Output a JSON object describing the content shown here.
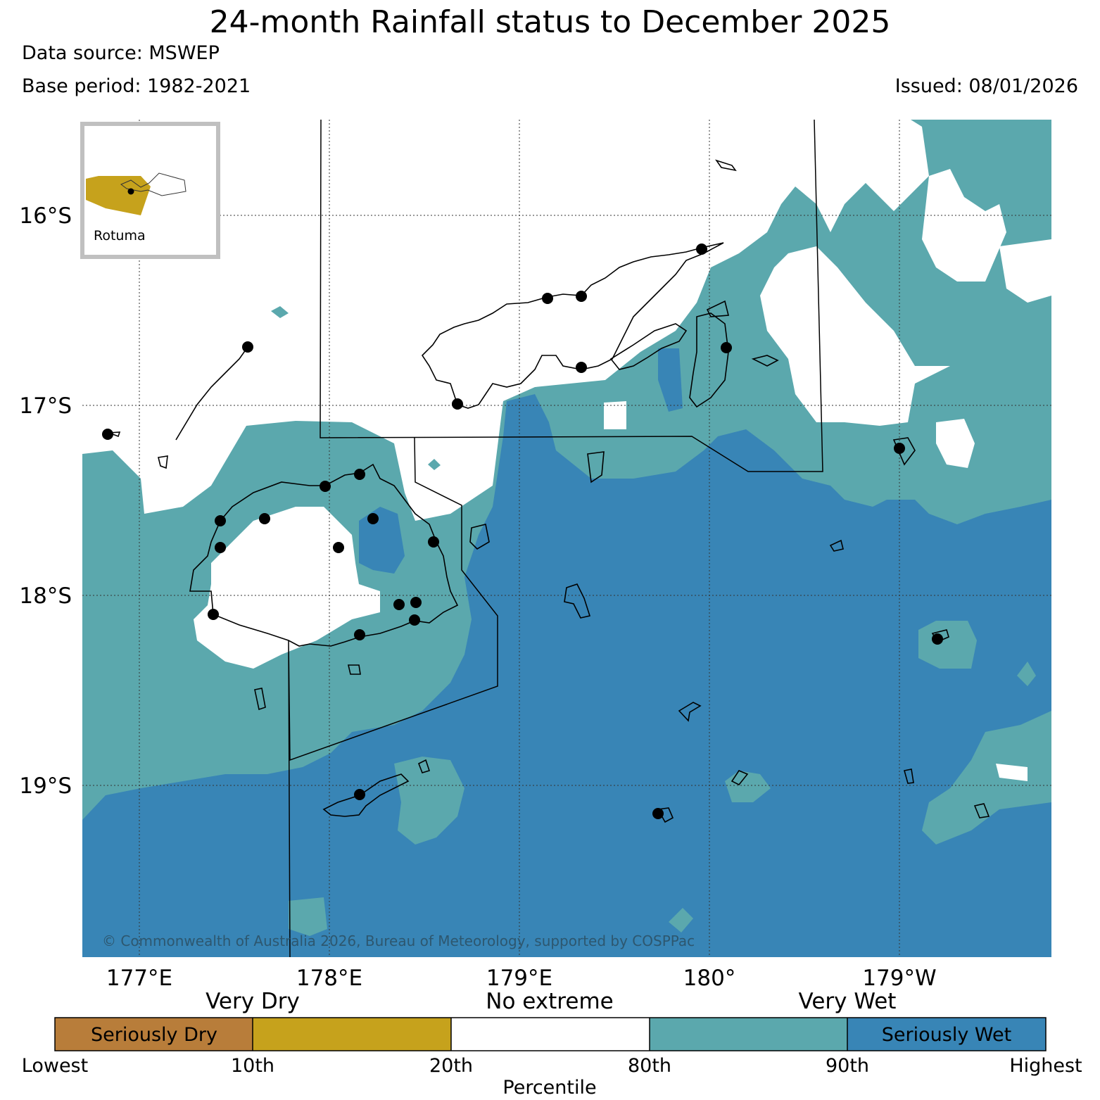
{
  "header": {
    "title": "24-month Rainfall status to December 2025",
    "data_source": "Data source: MSWEP",
    "base_period": "Base period: 1982-2021",
    "issued": "Issued: 08/01/2026"
  },
  "map": {
    "lat_labels": [
      "16°S",
      "17°S",
      "18°S",
      "19°S"
    ],
    "lon_labels": [
      "177°E",
      "178°E",
      "179°E",
      "180°",
      "179°W"
    ],
    "inset_label": "Rotuma",
    "copyright": "© Commonwealth of Australia 2026, Bureau of Meteorology, supported by COSPPac",
    "colors": {
      "seriously_dry": "#b87d3a",
      "very_dry": "#c6a21c",
      "no_extreme": "#ffffff",
      "very_wet": "#5ba8ad",
      "seriously_wet": "#3885b6"
    }
  },
  "legend": {
    "group_labels": [
      "Very Dry",
      "No extreme",
      "Very Wet"
    ],
    "inner_labels": [
      "Seriously Dry",
      "Seriously Wet"
    ],
    "ticks": [
      "Lowest",
      "10th",
      "20th",
      "80th",
      "90th",
      "Highest"
    ],
    "axis_title": "Percentile"
  }
}
